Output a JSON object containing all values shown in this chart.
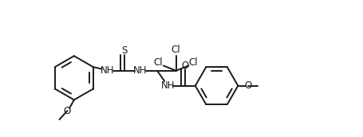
{
  "bg_color": "#ffffff",
  "line_color": "#1a1a1a",
  "line_width": 1.4,
  "font_size": 8.5,
  "font_family": "DejaVu Sans",
  "figsize": [
    4.56,
    1.72
  ],
  "dpi": 100,
  "xlim": [
    0,
    13
  ],
  "ylim": [
    -2.5,
    4.0
  ]
}
